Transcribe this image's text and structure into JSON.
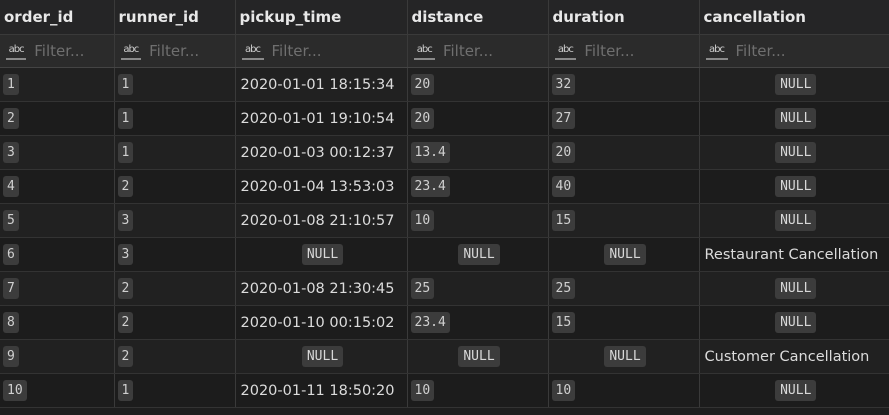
{
  "columns": [
    "order_id",
    "runner_id",
    "pickup_time",
    "distance",
    "duration",
    "cancellation"
  ],
  "filter_placeholder": "Filter...",
  "filter_icon": "abc-text-type-icon",
  "null_label": "NULL",
  "rows": [
    {
      "order_id": "1",
      "runner_id": "1",
      "pickup_time": "2020-01-01 18:15:34",
      "distance": "20",
      "duration": "32",
      "cancellation": null
    },
    {
      "order_id": "2",
      "runner_id": "1",
      "pickup_time": "2020-01-01 19:10:54",
      "distance": "20",
      "duration": "27",
      "cancellation": null
    },
    {
      "order_id": "3",
      "runner_id": "1",
      "pickup_time": "2020-01-03 00:12:37",
      "distance": "13.4",
      "duration": "20",
      "cancellation": null
    },
    {
      "order_id": "4",
      "runner_id": "2",
      "pickup_time": "2020-01-04 13:53:03",
      "distance": "23.4",
      "duration": "40",
      "cancellation": null
    },
    {
      "order_id": "5",
      "runner_id": "3",
      "pickup_time": "2020-01-08 21:10:57",
      "distance": "10",
      "duration": "15",
      "cancellation": null
    },
    {
      "order_id": "6",
      "runner_id": "3",
      "pickup_time": null,
      "distance": null,
      "duration": null,
      "cancellation": "Restaurant Cancellation"
    },
    {
      "order_id": "7",
      "runner_id": "2",
      "pickup_time": "2020-01-08 21:30:45",
      "distance": "25",
      "duration": "25",
      "cancellation": null
    },
    {
      "order_id": "8",
      "runner_id": "2",
      "pickup_time": "2020-01-10 00:15:02",
      "distance": "23.4",
      "duration": "15",
      "cancellation": null
    },
    {
      "order_id": "9",
      "runner_id": "2",
      "pickup_time": null,
      "distance": null,
      "duration": null,
      "cancellation": "Customer Cancellation"
    },
    {
      "order_id": "10",
      "runner_id": "1",
      "pickup_time": "2020-01-11 18:50:20",
      "distance": "10",
      "duration": "10",
      "cancellation": null
    }
  ],
  "colors": {
    "background": "#1e1e1e",
    "chip": "#3c3c3c",
    "text": "#dcdcdc"
  }
}
